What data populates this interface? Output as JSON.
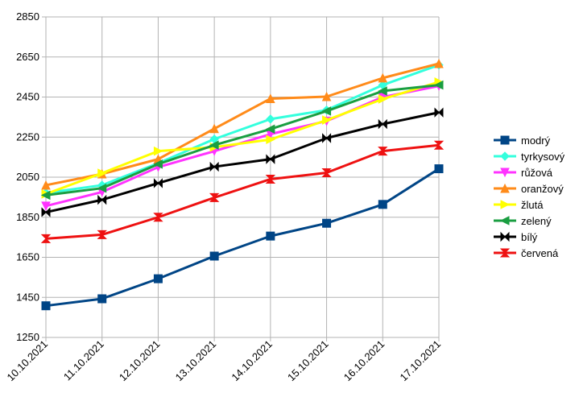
{
  "chart_data": {
    "type": "line",
    "title": "",
    "xlabel": "",
    "ylabel": "",
    "categories": [
      "10.10.2021",
      "11.10.2021",
      "12.10.2021",
      "13.10.2021",
      "14.10.2021",
      "15.10.2021",
      "16.10.2021",
      "17.10.2021"
    ],
    "ylim": [
      1250,
      2850
    ],
    "yticks": [
      1250,
      1450,
      1650,
      1850,
      2050,
      2250,
      2450,
      2650,
      2850
    ],
    "grid": "horizontal",
    "legend_position": "right",
    "series": [
      {
        "name": "modrý",
        "color": "#004586",
        "marker": "square",
        "values": [
          1408,
          1443,
          1543,
          1656,
          1756,
          1820,
          1914,
          2092
        ]
      },
      {
        "name": "tyrkysový",
        "color": "#33ffdd",
        "marker": "diamond",
        "values": [
          1971,
          2010,
          2120,
          2240,
          2340,
          2385,
          2510,
          2610
        ]
      },
      {
        "name": "růžová",
        "color": "#ff33ff",
        "marker": "triangle-down",
        "values": [
          1906,
          1976,
          2100,
          2180,
          2265,
          2330,
          2450,
          2505
        ]
      },
      {
        "name": "oranžový",
        "color": "#ff8b1a",
        "marker": "triangle-up",
        "values": [
          2010,
          2066,
          2140,
          2292,
          2442,
          2452,
          2545,
          2617
        ]
      },
      {
        "name": "žlutá",
        "color": "#ffff00",
        "marker": "triangle-right",
        "values": [
          1966,
          2070,
          2180,
          2200,
          2238,
          2335,
          2440,
          2525
        ]
      },
      {
        "name": "zelený",
        "color": "#1a9e41",
        "marker": "triangle-left",
        "values": [
          1960,
          1995,
          2115,
          2210,
          2290,
          2380,
          2480,
          2510
        ]
      },
      {
        "name": "bílý",
        "color": "#000000",
        "marker": "bowtie",
        "values": [
          1875,
          1937,
          2020,
          2102,
          2140,
          2245,
          2315,
          2373
        ]
      },
      {
        "name": "červená",
        "color": "#ee1111",
        "marker": "hourglass",
        "values": [
          1743,
          1763,
          1850,
          1948,
          2040,
          2072,
          2180,
          2210
        ]
      }
    ]
  }
}
